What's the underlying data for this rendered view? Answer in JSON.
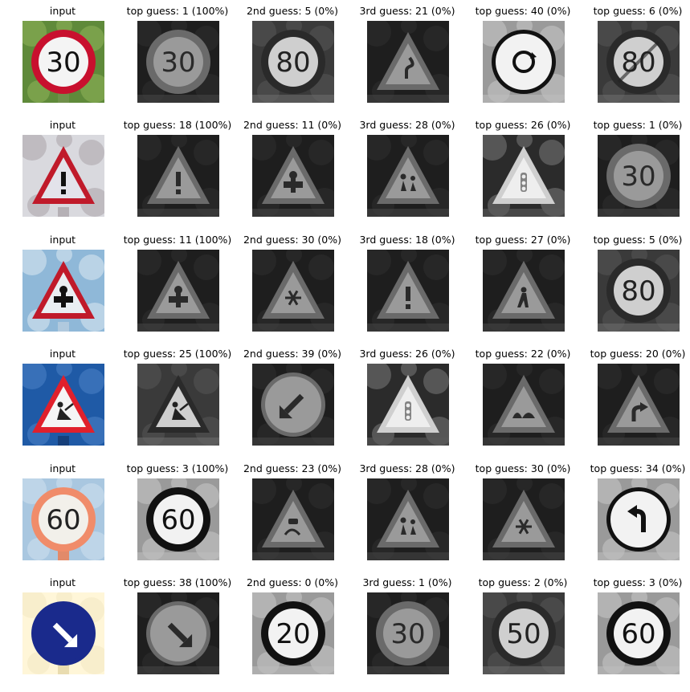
{
  "figure": {
    "rows": [
      {
        "input": {
          "label": "input",
          "content": "30",
          "kind": "speed",
          "scheme": "color-30"
        },
        "guesses": [
          {
            "label": "top guess: 1 (100%)",
            "content": "30",
            "kind": "speed",
            "scheme": "dark"
          },
          {
            "label": "2nd guess: 5 (0%)",
            "content": "80",
            "kind": "speed",
            "scheme": "mid"
          },
          {
            "label": "3rd guess: 21 (0%)",
            "content": "double-curve",
            "kind": "warning",
            "scheme": "dark"
          },
          {
            "label": "top guess: 40 (0%)",
            "content": "roundabout",
            "kind": "round",
            "scheme": "light"
          },
          {
            "label": "top guess: 6 (0%)",
            "content": "80",
            "kind": "end",
            "scheme": "mid"
          }
        ]
      },
      {
        "input": {
          "label": "input",
          "content": "!",
          "kind": "warning",
          "scheme": "color-warn"
        },
        "guesses": [
          {
            "label": "top guess: 18 (100%)",
            "content": "!",
            "kind": "warning",
            "scheme": "dark"
          },
          {
            "label": "2nd guess: 11 (0%)",
            "content": "crossroad",
            "kind": "warning",
            "scheme": "dark"
          },
          {
            "label": "3rd guess: 28 (0%)",
            "content": "children",
            "kind": "warning",
            "scheme": "dark"
          },
          {
            "label": "top guess: 26 (0%)",
            "content": "signals",
            "kind": "warning",
            "scheme": "noisy"
          },
          {
            "label": "top guess: 1 (0%)",
            "content": "30",
            "kind": "speed",
            "scheme": "dark"
          }
        ]
      },
      {
        "input": {
          "label": "input",
          "content": "crossroad",
          "kind": "warning",
          "scheme": "color-sky"
        },
        "guesses": [
          {
            "label": "top guess: 11 (100%)",
            "content": "crossroad",
            "kind": "warning",
            "scheme": "dark"
          },
          {
            "label": "2nd guess: 30 (0%)",
            "content": "snow",
            "kind": "warning",
            "scheme": "dark"
          },
          {
            "label": "3rd guess: 18 (0%)",
            "content": "!",
            "kind": "warning",
            "scheme": "dark"
          },
          {
            "label": "top guess: 27 (0%)",
            "content": "pedestrian",
            "kind": "warning",
            "scheme": "dark"
          },
          {
            "label": "top guess: 5 (0%)",
            "content": "80",
            "kind": "speed",
            "scheme": "mid"
          }
        ]
      },
      {
        "input": {
          "label": "input",
          "content": "roadwork",
          "kind": "warning",
          "scheme": "color-blue"
        },
        "guesses": [
          {
            "label": "top guess: 25 (100%)",
            "content": "roadwork",
            "kind": "warning",
            "scheme": "mid"
          },
          {
            "label": "2nd guess: 39 (0%)",
            "content": "keep-left",
            "kind": "round",
            "scheme": "dark"
          },
          {
            "label": "3rd guess: 26 (0%)",
            "content": "signals",
            "kind": "warning",
            "scheme": "noisy"
          },
          {
            "label": "top guess: 22 (0%)",
            "content": "bumpy",
            "kind": "warning",
            "scheme": "dark"
          },
          {
            "label": "top guess: 20 (0%)",
            "content": "curve-right",
            "kind": "warning",
            "scheme": "dark"
          }
        ]
      },
      {
        "input": {
          "label": "input",
          "content": "60",
          "kind": "speed",
          "scheme": "color-60"
        },
        "guesses": [
          {
            "label": "top guess: 3 (100%)",
            "content": "60",
            "kind": "speed",
            "scheme": "light"
          },
          {
            "label": "2nd guess: 23 (0%)",
            "content": "slippery",
            "kind": "warning",
            "scheme": "dark"
          },
          {
            "label": "3rd guess: 28 (0%)",
            "content": "children",
            "kind": "warning",
            "scheme": "dark"
          },
          {
            "label": "top guess: 30 (0%)",
            "content": "snow",
            "kind": "warning",
            "scheme": "dark"
          },
          {
            "label": "top guess: 34 (0%)",
            "content": "turn-left",
            "kind": "round",
            "scheme": "light"
          }
        ]
      },
      {
        "input": {
          "label": "input",
          "content": "keep-right",
          "kind": "round",
          "scheme": "color-keep"
        },
        "guesses": [
          {
            "label": "top guess: 38 (100%)",
            "content": "keep-right",
            "kind": "round",
            "scheme": "dark"
          },
          {
            "label": "2nd guess: 0 (0%)",
            "content": "20",
            "kind": "speed",
            "scheme": "light"
          },
          {
            "label": "3rd guess: 1 (0%)",
            "content": "30",
            "kind": "speed",
            "scheme": "dark"
          },
          {
            "label": "top guess: 2 (0%)",
            "content": "50",
            "kind": "speed",
            "scheme": "mid"
          },
          {
            "label": "top guess: 3 (0%)",
            "content": "60",
            "kind": "speed",
            "scheme": "light"
          }
        ]
      }
    ]
  },
  "colors": {
    "sign_red": "#c8102e",
    "warn_red": "#c01a2a",
    "sky_blue": "#8fb8d8",
    "blue_bg": "#1f5aa6",
    "keep_blue": "#1a2a8c",
    "cream": "#fff6d8",
    "salmon": "#f08c6a",
    "greens": "#5f8a3a"
  }
}
